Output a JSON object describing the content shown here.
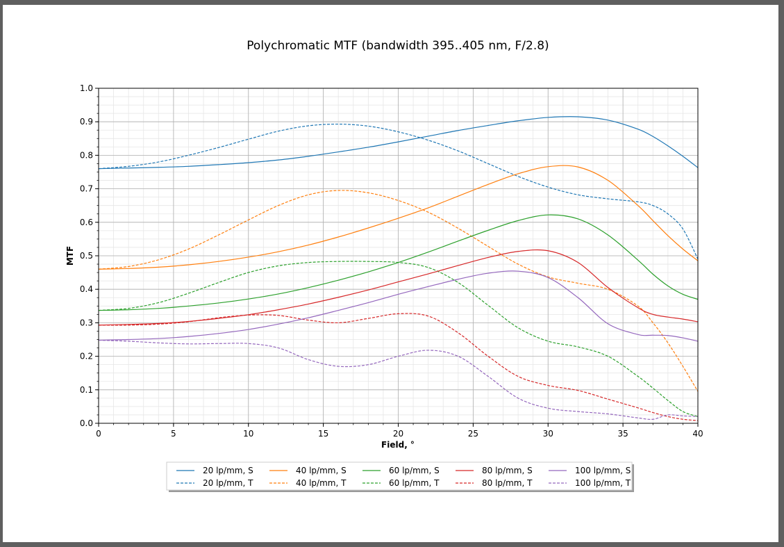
{
  "chart_data": {
    "type": "line",
    "title": "Polychromatic MTF (bandwidth 395..405 nm, F/2.8)",
    "xlabel": "Field, °",
    "ylabel": "MTF",
    "xlim": [
      0,
      40
    ],
    "ylim": [
      0,
      1
    ],
    "x_ticks": [
      0,
      5,
      10,
      15,
      20,
      25,
      30,
      35,
      40
    ],
    "y_ticks": [
      0.0,
      0.1,
      0.2,
      0.3,
      0.4,
      0.5,
      0.6,
      0.7,
      0.8,
      0.9,
      1.0
    ],
    "grid": true,
    "legend_position": "bottom-center",
    "legend_columns": 5,
    "x": [
      0,
      2,
      4,
      6,
      8,
      10,
      12,
      14,
      16,
      18,
      20,
      22,
      24,
      26,
      28,
      30,
      32,
      34,
      36,
      37,
      38,
      39,
      40
    ],
    "series": [
      {
        "name": "20 lp/mm, S",
        "color": "#1f77b4",
        "style": "solid",
        "values": [
          0.76,
          0.762,
          0.764,
          0.767,
          0.772,
          0.778,
          0.786,
          0.797,
          0.81,
          0.824,
          0.84,
          0.857,
          0.874,
          0.889,
          0.903,
          0.913,
          0.915,
          0.905,
          0.878,
          0.856,
          0.828,
          0.797,
          0.763
        ]
      },
      {
        "name": "20 lp/mm, T",
        "color": "#1f77b4",
        "style": "dashed",
        "values": [
          0.76,
          0.767,
          0.78,
          0.8,
          0.823,
          0.848,
          0.872,
          0.888,
          0.893,
          0.887,
          0.87,
          0.845,
          0.813,
          0.775,
          0.737,
          0.705,
          0.682,
          0.67,
          0.661,
          0.65,
          0.625,
          0.58,
          0.49
        ]
      },
      {
        "name": "40 lp/mm, S",
        "color": "#ff7f0e",
        "style": "solid",
        "values": [
          0.46,
          0.462,
          0.466,
          0.473,
          0.483,
          0.496,
          0.512,
          0.532,
          0.556,
          0.583,
          0.612,
          0.643,
          0.678,
          0.713,
          0.745,
          0.766,
          0.765,
          0.725,
          0.65,
          0.605,
          0.56,
          0.52,
          0.485
        ]
      },
      {
        "name": "40 lp/mm, T",
        "color": "#ff7f0e",
        "style": "dashed",
        "values": [
          0.46,
          0.468,
          0.488,
          0.52,
          0.562,
          0.607,
          0.65,
          0.682,
          0.695,
          0.688,
          0.665,
          0.63,
          0.582,
          0.528,
          0.475,
          0.437,
          0.418,
          0.4,
          0.35,
          0.3,
          0.24,
          0.17,
          0.095
        ]
      },
      {
        "name": "60 lp/mm, S",
        "color": "#2ca02c",
        "style": "solid",
        "values": [
          0.337,
          0.339,
          0.343,
          0.35,
          0.359,
          0.371,
          0.386,
          0.405,
          0.427,
          0.452,
          0.48,
          0.511,
          0.544,
          0.576,
          0.605,
          0.622,
          0.61,
          0.562,
          0.487,
          0.445,
          0.41,
          0.385,
          0.37
        ]
      },
      {
        "name": "60 lp/mm, T",
        "color": "#2ca02c",
        "style": "dashed",
        "values": [
          0.337,
          0.343,
          0.36,
          0.388,
          0.42,
          0.45,
          0.47,
          0.48,
          0.483,
          0.483,
          0.48,
          0.465,
          0.42,
          0.352,
          0.285,
          0.245,
          0.228,
          0.2,
          0.14,
          0.105,
          0.068,
          0.035,
          0.02
        ]
      },
      {
        "name": "80 lp/mm, S",
        "color": "#d62728",
        "style": "solid",
        "values": [
          0.293,
          0.295,
          0.298,
          0.304,
          0.313,
          0.324,
          0.339,
          0.356,
          0.376,
          0.398,
          0.422,
          0.446,
          0.471,
          0.495,
          0.513,
          0.515,
          0.48,
          0.405,
          0.345,
          0.325,
          0.317,
          0.311,
          0.303
        ]
      },
      {
        "name": "80 lp/mm, T",
        "color": "#d62728",
        "style": "dashed",
        "values": [
          0.293,
          0.293,
          0.296,
          0.303,
          0.315,
          0.323,
          0.322,
          0.308,
          0.3,
          0.313,
          0.327,
          0.32,
          0.27,
          0.2,
          0.14,
          0.113,
          0.098,
          0.072,
          0.046,
          0.032,
          0.02,
          0.012,
          0.008
        ]
      },
      {
        "name": "100 lp/mm, S",
        "color": "#9467bd",
        "style": "solid",
        "values": [
          0.248,
          0.25,
          0.253,
          0.259,
          0.268,
          0.28,
          0.296,
          0.315,
          0.337,
          0.36,
          0.385,
          0.408,
          0.43,
          0.448,
          0.454,
          0.435,
          0.375,
          0.297,
          0.265,
          0.263,
          0.262,
          0.255,
          0.245
        ]
      },
      {
        "name": "100 lp/mm, T",
        "color": "#9467bd",
        "style": "dashed",
        "values": [
          0.248,
          0.245,
          0.24,
          0.237,
          0.238,
          0.238,
          0.225,
          0.19,
          0.17,
          0.175,
          0.2,
          0.218,
          0.2,
          0.14,
          0.075,
          0.045,
          0.035,
          0.028,
          0.016,
          0.012,
          0.025,
          0.022,
          0.02
        ]
      }
    ]
  }
}
